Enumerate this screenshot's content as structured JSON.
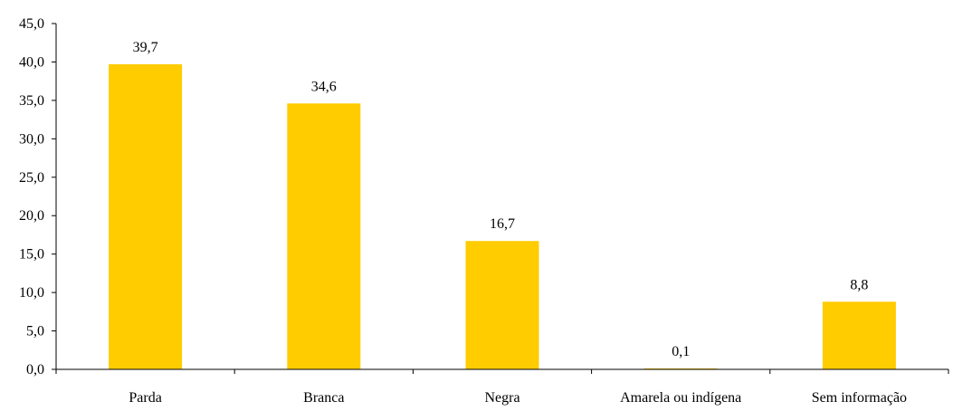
{
  "chart_data": {
    "type": "bar",
    "categories": [
      "Parda",
      "Branca",
      "Negra",
      "Amarela ou indígena",
      "Sem informação"
    ],
    "values": [
      39.7,
      34.6,
      16.7,
      0.1,
      8.8
    ],
    "value_labels": [
      "39,7",
      "34,6",
      "16,7",
      "0,1",
      "8,8"
    ],
    "y_tick_values": [
      0,
      5,
      10,
      15,
      20,
      25,
      30,
      35,
      40,
      45
    ],
    "y_tick_labels": [
      "0,0",
      "5,0",
      "10,0",
      "15,0",
      "20,0",
      "25,0",
      "30,0",
      "35,0",
      "40,0",
      "45,0"
    ],
    "ylim": [
      0,
      45
    ],
    "grid": false,
    "legend": "none",
    "bar_color": "#FFCC00"
  }
}
